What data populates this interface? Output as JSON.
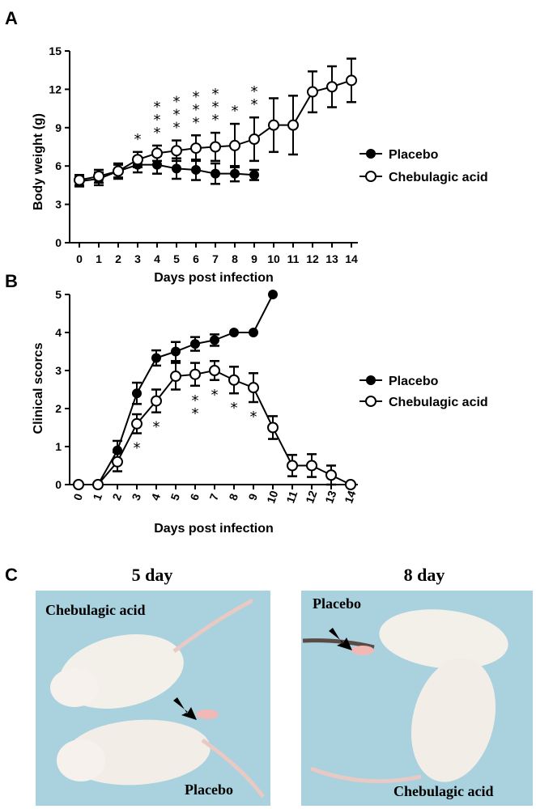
{
  "panels": {
    "a": "A",
    "b": "B",
    "c": "C"
  },
  "legend": {
    "placebo": "Placebo",
    "chebulagic": "Chebulagic acid"
  },
  "chart_data": [
    {
      "type": "line",
      "panel": "A",
      "xlabel": "Days post infection",
      "ylabel": "Body weight (g)",
      "ylim": [
        0,
        15
      ],
      "yticks": [
        0,
        3,
        6,
        9,
        12,
        15
      ],
      "x": [
        0,
        1,
        2,
        3,
        4,
        5,
        6,
        7,
        8,
        9,
        10,
        11,
        12,
        13,
        14
      ],
      "series": [
        {
          "name": "Placebo",
          "marker": "filled",
          "x": [
            0,
            1,
            2,
            3,
            4,
            5,
            6,
            7,
            8,
            9
          ],
          "values": [
            4.8,
            5.0,
            5.6,
            6.1,
            6.1,
            5.8,
            5.7,
            5.4,
            5.4,
            5.3
          ],
          "err": [
            0.4,
            0.5,
            0.5,
            0.6,
            0.7,
            0.8,
            0.8,
            0.8,
            0.6,
            0.4
          ]
        },
        {
          "name": "Chebulagic acid",
          "marker": "open",
          "x": [
            0,
            1,
            2,
            3,
            4,
            5,
            6,
            7,
            8,
            9,
            10,
            11,
            12,
            13,
            14
          ],
          "values": [
            4.9,
            5.2,
            5.6,
            6.5,
            7.0,
            7.2,
            7.4,
            7.5,
            7.6,
            8.1,
            9.2,
            9.2,
            11.8,
            12.2,
            12.7
          ],
          "err": [
            0.4,
            0.5,
            0.6,
            0.6,
            0.6,
            0.8,
            1.0,
            1.1,
            1.7,
            1.7,
            2.1,
            2.3,
            1.6,
            1.6,
            1.7
          ]
        }
      ],
      "significance": [
        {
          "x": 3,
          "stars": 1
        },
        {
          "x": 4,
          "stars": 3
        },
        {
          "x": 5,
          "stars": 3
        },
        {
          "x": 6,
          "stars": 3
        },
        {
          "x": 7,
          "stars": 3
        },
        {
          "x": 8,
          "stars": 1
        },
        {
          "x": 9,
          "stars": 2
        }
      ]
    },
    {
      "type": "line",
      "panel": "B",
      "xlabel": "Days post infection",
      "ylabel": "Clinical scorcs",
      "ylim": [
        0,
        5
      ],
      "yticks": [
        0,
        1,
        2,
        3,
        4,
        5
      ],
      "x": [
        0,
        1,
        2,
        3,
        4,
        5,
        6,
        7,
        8,
        9,
        10,
        11,
        12,
        13,
        14
      ],
      "series": [
        {
          "name": "Placebo",
          "marker": "filled",
          "x": [
            0,
            1,
            2,
            3,
            4,
            5,
            6,
            7,
            8,
            9,
            10
          ],
          "values": [
            0,
            0,
            0.9,
            2.4,
            3.33,
            3.5,
            3.7,
            3.8,
            4.0,
            4.0,
            5.0
          ],
          "err": [
            0,
            0,
            0.25,
            0.28,
            0.2,
            0.25,
            0.18,
            0.15,
            0,
            0,
            0
          ]
        },
        {
          "name": "Chebulagic acid",
          "marker": "open",
          "x": [
            0,
            1,
            2,
            3,
            4,
            5,
            6,
            7,
            8,
            9,
            10,
            11,
            12,
            13,
            14
          ],
          "values": [
            0,
            0,
            0.6,
            1.6,
            2.2,
            2.85,
            2.9,
            3.0,
            2.75,
            2.55,
            1.5,
            0.5,
            0.5,
            0.25,
            0
          ],
          "err": [
            0,
            0,
            0.25,
            0.25,
            0.3,
            0.35,
            0.3,
            0.25,
            0.35,
            0.38,
            0.3,
            0.28,
            0.3,
            0.25,
            0
          ]
        }
      ],
      "significance": [
        {
          "x": 3,
          "stars": 1
        },
        {
          "x": 4,
          "stars": 1
        },
        {
          "x": 6,
          "stars": 2
        },
        {
          "x": 7,
          "stars": 1
        },
        {
          "x": 8,
          "stars": 1
        },
        {
          "x": 9,
          "stars": 1
        }
      ]
    }
  ],
  "photos": {
    "left": {
      "title": "5 day",
      "label_top": "Chebulagic acid",
      "label_bottom": "Placebo"
    },
    "right": {
      "title": "8 day",
      "label_top": "Placebo",
      "label_bottom": "Chebulagic acid"
    }
  }
}
